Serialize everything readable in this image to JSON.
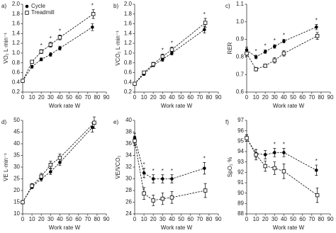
{
  "chart_data": [
    {
      "type": "line",
      "panel_label": "a)",
      "ylabel": "V̇O₂ L·min⁻¹",
      "xlabel": "Work rate W",
      "xlim": [
        0,
        90
      ],
      "xticks": [
        0,
        10,
        20,
        30,
        40,
        50,
        60,
        70,
        80,
        90
      ],
      "ylim": [
        0.2,
        2.0
      ],
      "yticks": [
        0.2,
        0.4,
        0.6,
        0.8,
        {
          "value": 1,
          "label": "1.0"
        },
        1.2,
        1.4,
        1.6,
        1.8,
        {
          "value": 2,
          "label": "2.0"
        }
      ],
      "legend": "upper left",
      "series": [
        {
          "name": "Cycle",
          "marker": "circle",
          "color": "#000000",
          "x": [
            0,
            10,
            20,
            30,
            40,
            75
          ],
          "values": [
            0.43,
            0.72,
            0.87,
            0.97,
            1.1,
            1.53
          ],
          "errors": [
            0.02,
            0.03,
            0.03,
            0.04,
            0.04,
            0.07
          ]
        },
        {
          "name": "Treadmill",
          "marker": "square",
          "color": "#000000",
          "x": [
            0,
            10,
            20,
            30,
            40,
            76
          ],
          "values": [
            0.43,
            0.82,
            1.03,
            1.17,
            1.32,
            1.8
          ],
          "errors": [
            0.02,
            0.03,
            0.04,
            0.05,
            0.05,
            0.09
          ]
        }
      ],
      "asterisk_x": [
        20,
        30,
        40,
        75
      ],
      "asterisk_label": "*"
    },
    {
      "type": "line",
      "panel_label": "b)",
      "ylabel": "V̇CO₂ L·min⁻¹",
      "xlabel": "Work rate W",
      "xlim": [
        0,
        90
      ],
      "xticks": [
        0,
        10,
        20,
        30,
        40,
        50,
        60,
        70,
        80,
        90
      ],
      "ylim": [
        0.2,
        2.0
      ],
      "yticks": [
        0.2,
        0.4,
        0.6,
        0.8,
        {
          "value": 1,
          "label": "1.0"
        },
        1.2,
        1.4,
        1.6,
        1.8,
        {
          "value": 2,
          "label": "2.0"
        }
      ],
      "series": [
        {
          "marker": "circle",
          "color": "#000000",
          "x": [
            0,
            10,
            20,
            30,
            40,
            75
          ],
          "values": [
            0.37,
            0.57,
            0.75,
            0.87,
            1.0,
            1.48
          ],
          "errors": [
            0.02,
            0.03,
            0.03,
            0.04,
            0.04,
            0.07
          ]
        },
        {
          "marker": "square",
          "color": "#000000",
          "x": [
            0,
            10,
            20,
            30,
            40,
            76
          ],
          "values": [
            0.37,
            0.6,
            0.77,
            0.93,
            1.07,
            1.62
          ],
          "errors": [
            0.02,
            0.03,
            0.04,
            0.05,
            0.05,
            0.09
          ]
        }
      ],
      "asterisk_x": [
        30,
        40,
        75
      ],
      "asterisk_label": "*"
    },
    {
      "type": "line",
      "panel_label": "c)",
      "ylabel": "RER",
      "xlabel": "Work rate W",
      "xlim": [
        0,
        90
      ],
      "xticks": [
        0,
        10,
        20,
        30,
        40,
        50,
        60,
        70,
        80,
        90
      ],
      "ylim": [
        0.6,
        1.1
      ],
      "yticks": [
        0.6,
        0.7,
        0.8,
        0.9,
        {
          "value": 1,
          "label": "1.0"
        },
        1.1
      ],
      "series": [
        {
          "marker": "circle",
          "color": "#000000",
          "x": [
            0,
            10,
            20,
            30,
            40,
            75
          ],
          "values": [
            0.84,
            0.8,
            0.83,
            0.86,
            0.89,
            0.97
          ],
          "errors": [
            0.015,
            0.01,
            0.01,
            0.01,
            0.01,
            0.015
          ]
        },
        {
          "marker": "square",
          "color": "#000000",
          "x": [
            0,
            10,
            20,
            30,
            40,
            76
          ],
          "values": [
            0.82,
            0.73,
            0.75,
            0.78,
            0.82,
            0.92
          ],
          "errors": [
            0.015,
            0.01,
            0.01,
            0.015,
            0.015,
            0.02
          ]
        }
      ],
      "asterisk_x": [
        10,
        20,
        30,
        40,
        75
      ],
      "asterisk_label": "*"
    },
    {
      "type": "line",
      "panel_label": "d)",
      "ylabel": "V̇E L·min⁻¹",
      "xlabel": "Work rate W",
      "xlim": [
        0,
        90
      ],
      "xticks": [
        0,
        10,
        20,
        30,
        40,
        50,
        60,
        70,
        80,
        90
      ],
      "ylim": [
        10,
        50
      ],
      "yticks": [
        10,
        15,
        20,
        25,
        30,
        35,
        40,
        45,
        50
      ],
      "series": [
        {
          "marker": "circle",
          "color": "#000000",
          "x": [
            0,
            10,
            20,
            30,
            40,
            75
          ],
          "values": [
            15,
            21.5,
            25,
            28,
            32,
            47
          ],
          "errors": [
            0.7,
            0.8,
            1,
            1.2,
            1.3,
            2
          ]
        },
        {
          "marker": "square",
          "color": "#000000",
          "x": [
            0,
            10,
            20,
            30,
            40,
            77
          ],
          "values": [
            15,
            22,
            26,
            31,
            34,
            49
          ],
          "errors": [
            0.7,
            1,
            1.3,
            1.5,
            1.6,
            2.5
          ]
        }
      ],
      "asterisk_x": [],
      "asterisk_label": "*"
    },
    {
      "type": "line",
      "panel_label": "e)",
      "ylabel": "V̇E/V̇CO₂",
      "xlabel": "Work rate W",
      "xlim": [
        0,
        90
      ],
      "xticks": [
        0,
        10,
        20,
        30,
        40,
        50,
        60,
        70,
        80,
        90
      ],
      "ylim": [
        24,
        40
      ],
      "yticks": [
        24,
        26,
        28,
        30,
        32,
        34,
        36,
        38,
        40
      ],
      "series": [
        {
          "marker": "circle",
          "color": "#000000",
          "x": [
            0,
            10,
            20,
            30,
            40,
            75
          ],
          "values": [
            37,
            31,
            30,
            30,
            30,
            31.8
          ],
          "errors": [
            0.8,
            0.8,
            0.7,
            0.7,
            0.7,
            1
          ]
        },
        {
          "marker": "square",
          "color": "#000000",
          "x": [
            0,
            10,
            20,
            30,
            40,
            76
          ],
          "values": [
            36.5,
            27.5,
            26.3,
            26.6,
            26.8,
            28
          ],
          "errors": [
            0.8,
            1,
            0.9,
            1,
            1,
            1.2
          ]
        }
      ],
      "asterisk_x": [
        10,
        20,
        30,
        40,
        75
      ],
      "asterisk_label": "*"
    },
    {
      "type": "line",
      "panel_label": "f)",
      "ylabel": "SpO₂ %",
      "xlabel": "Work rate W",
      "xlim": [
        0,
        90
      ],
      "xticks": [
        0,
        10,
        20,
        30,
        40,
        50,
        60,
        70,
        80,
        90
      ],
      "ylim": [
        88,
        97
      ],
      "yticks": [
        88,
        89,
        90,
        91,
        92,
        93,
        94,
        95,
        96,
        97
      ],
      "series": [
        {
          "marker": "circle",
          "color": "#000000",
          "x": [
            0,
            10,
            20,
            30,
            40,
            75
          ],
          "values": [
            95.3,
            93.8,
            93.7,
            93.9,
            93.9,
            92.2
          ],
          "errors": [
            0.3,
            0.4,
            0.4,
            0.4,
            0.4,
            0.5
          ]
        },
        {
          "marker": "square",
          "color": "#000000",
          "x": [
            0,
            10,
            20,
            30,
            40,
            76
          ],
          "values": [
            95.3,
            93.7,
            92.6,
            92.4,
            92.1,
            89.8
          ],
          "errors": [
            0.3,
            0.5,
            0.5,
            0.6,
            0.7,
            0.7
          ]
        }
      ],
      "asterisk_x": [
        30,
        40,
        75
      ],
      "asterisk_label": "*"
    }
  ]
}
